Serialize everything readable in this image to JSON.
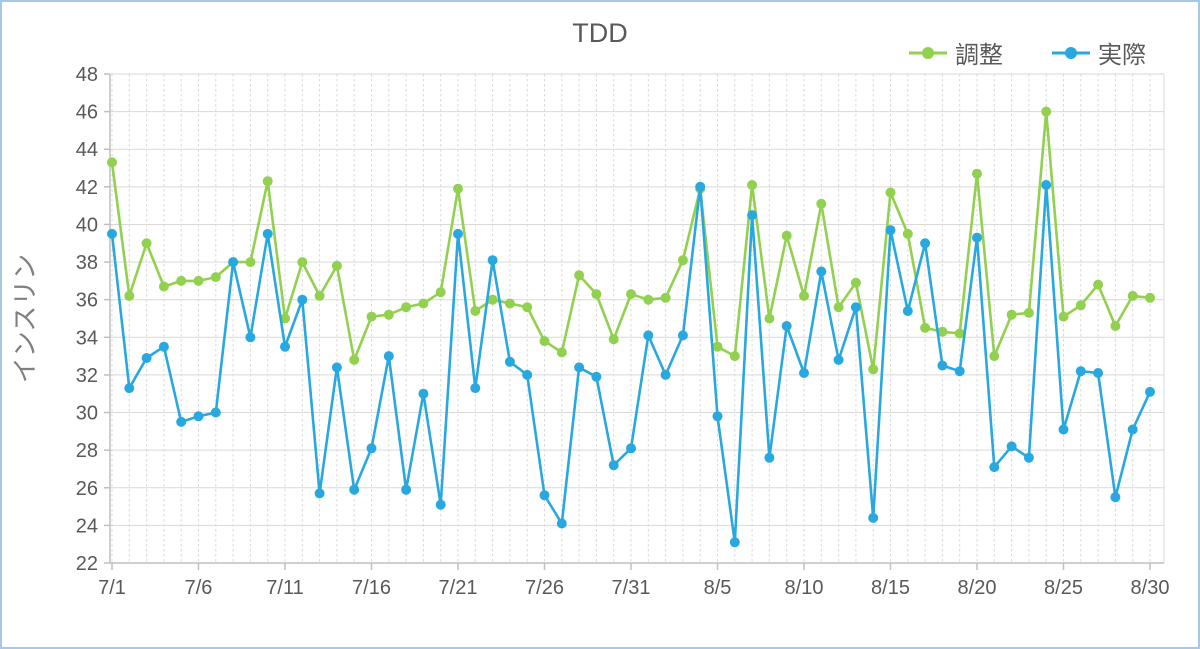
{
  "window": {
    "title": "TDD"
  },
  "colors": {
    "frame_border": "#A8C8E8",
    "grid": "#D9D9D9",
    "axis": "#BFBFBF",
    "text": "#595959",
    "axis_title": "#7F7F7F"
  },
  "chart_data": {
    "type": "line",
    "title": "TDD",
    "xlabel": "",
    "ylabel": "インスリン",
    "ylim": [
      22,
      48
    ],
    "ytick_step": 2,
    "grid": true,
    "legend_position": "top-right",
    "x_tick_labels": [
      "7/1",
      "7/6",
      "7/11",
      "7/16",
      "7/21",
      "7/26",
      "7/31",
      "8/5",
      "8/10",
      "8/15",
      "8/20",
      "8/25",
      "8/30"
    ],
    "x": [
      "7/1",
      "7/2",
      "7/3",
      "7/4",
      "7/5",
      "7/6",
      "7/7",
      "7/8",
      "7/9",
      "7/10",
      "7/11",
      "7/12",
      "7/13",
      "7/14",
      "7/15",
      "7/16",
      "7/17",
      "7/18",
      "7/19",
      "7/20",
      "7/21",
      "7/22",
      "7/23",
      "7/24",
      "7/25",
      "7/26",
      "7/27",
      "7/28",
      "7/29",
      "7/30",
      "7/31",
      "8/1",
      "8/2",
      "8/3",
      "8/4",
      "8/5",
      "8/6",
      "8/7",
      "8/8",
      "8/9",
      "8/10",
      "8/11",
      "8/12",
      "8/13",
      "8/14",
      "8/15",
      "8/16",
      "8/17",
      "8/18",
      "8/19",
      "8/20",
      "8/21",
      "8/22",
      "8/23",
      "8/24",
      "8/25",
      "8/26",
      "8/27",
      "8/28",
      "8/29",
      "8/30"
    ],
    "series": [
      {
        "id": "adjusted",
        "name": "調整",
        "color": "#92D050",
        "values": [
          43.3,
          36.2,
          39.0,
          36.7,
          37.0,
          37.0,
          37.2,
          38.0,
          38.0,
          42.3,
          35.0,
          38.0,
          36.2,
          37.8,
          32.8,
          35.1,
          35.2,
          35.6,
          35.8,
          36.4,
          41.9,
          35.4,
          36.0,
          35.8,
          35.6,
          33.8,
          33.2,
          37.3,
          36.3,
          33.9,
          36.3,
          36.0,
          36.1,
          38.1,
          41.9,
          33.5,
          33.0,
          42.1,
          35.0,
          39.4,
          36.2,
          41.1,
          35.6,
          36.9,
          32.3,
          41.7,
          39.5,
          34.5,
          34.3,
          34.2,
          42.7,
          33.0,
          35.2,
          35.3,
          46.0,
          35.1,
          35.7,
          36.8,
          34.6,
          36.2,
          36.1
        ]
      },
      {
        "id": "actual",
        "name": "実際",
        "color": "#29A8E0",
        "values": [
          39.5,
          31.3,
          32.9,
          33.5,
          29.5,
          29.8,
          30.0,
          38.0,
          34.0,
          39.5,
          33.5,
          36.0,
          25.7,
          32.4,
          25.9,
          28.1,
          33.0,
          25.9,
          31.0,
          25.1,
          39.5,
          31.3,
          38.1,
          32.7,
          32.0,
          25.6,
          24.1,
          32.4,
          31.9,
          27.2,
          28.1,
          34.1,
          32.0,
          34.1,
          42.0,
          29.8,
          23.1,
          40.5,
          27.6,
          34.6,
          32.1,
          37.5,
          32.8,
          35.6,
          24.4,
          39.7,
          35.4,
          39.0,
          32.5,
          32.2,
          39.3,
          27.1,
          28.2,
          27.6,
          42.1,
          29.1,
          32.2,
          32.1,
          25.5,
          29.1,
          31.1
        ]
      }
    ]
  }
}
